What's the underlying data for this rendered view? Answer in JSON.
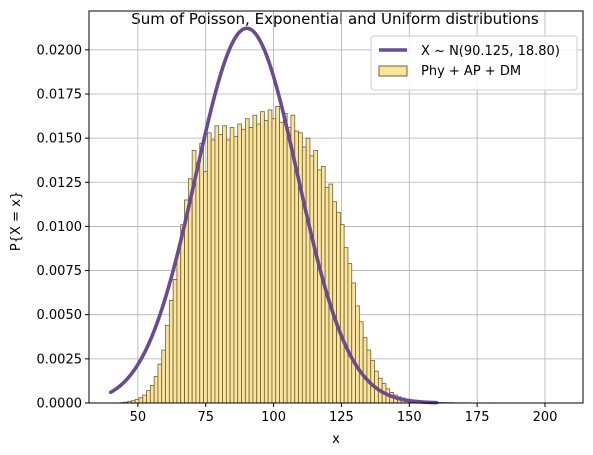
{
  "chart_data": {
    "type": "bar",
    "title": "Sum of Poisson, Exponential and Uniform distributions",
    "xlabel": "x",
    "ylabel": "P{X = x}",
    "xlim": [
      32,
      214
    ],
    "ylim": [
      0,
      0.0222
    ],
    "xticks": [
      50,
      75,
      100,
      125,
      150,
      175,
      200
    ],
    "yticks": [
      0.0,
      0.0025,
      0.005,
      0.0075,
      0.01,
      0.0125,
      0.015,
      0.0175,
      0.02
    ],
    "ytick_labels": [
      "0.0000",
      "0.0025",
      "0.0050",
      "0.0075",
      "0.0100",
      "0.0125",
      "0.0150",
      "0.0175",
      "0.0200"
    ],
    "grid": true,
    "legend_position": "top-right",
    "series": [
      {
        "name": "X ~ N(90.125, 18.80)",
        "kind": "line",
        "color": "#684c8f",
        "mu": 90.125,
        "sigma": 18.8,
        "x_range": [
          40,
          160
        ]
      },
      {
        "name": "Phy + AP + DM",
        "kind": "histogram",
        "bin_width": 1.4,
        "face_color": "#fde49b",
        "edge_color": "#6a5f3c",
        "x": [
          44.1,
          45.5,
          46.9,
          48.3,
          49.7,
          51.1,
          52.5,
          53.9,
          55.3,
          56.7,
          58.1,
          59.5,
          60.9,
          62.3,
          63.7,
          65.1,
          66.5,
          67.9,
          69.3,
          70.7,
          72.1,
          73.5,
          74.9,
          76.3,
          77.7,
          79.1,
          80.5,
          81.9,
          83.3,
          84.7,
          86.1,
          87.5,
          88.9,
          90.3,
          91.7,
          93.1,
          94.5,
          95.9,
          97.3,
          98.7,
          100.1,
          101.5,
          102.9,
          104.3,
          105.7,
          107.1,
          108.5,
          109.9,
          111.3,
          112.7,
          114.1,
          115.5,
          116.9,
          118.3,
          119.7,
          121.1,
          122.5,
          123.9,
          125.3,
          126.7,
          128.1,
          129.5,
          130.9,
          132.3,
          133.7,
          135.1,
          136.5,
          137.9,
          139.3,
          140.7,
          142.1,
          143.5,
          144.9,
          146.3,
          147.7,
          149.1,
          150.5,
          151.9,
          153.3,
          154.7,
          156.1,
          157.5,
          158.9,
          160.3,
          161.7,
          163.1,
          164.5,
          165.9,
          167.3,
          168.7,
          170.1,
          171.5,
          180.0
        ],
        "y": [
          2e-05,
          4e-05,
          8e-05,
          0.00013,
          0.0002,
          0.0003,
          0.00045,
          0.0007,
          0.001,
          0.0015,
          0.0022,
          0.003,
          0.0044,
          0.0058,
          0.007,
          0.0085,
          0.0101,
          0.0115,
          0.0127,
          0.0143,
          0.0136,
          0.0147,
          0.0131,
          0.0153,
          0.0149,
          0.0157,
          0.0152,
          0.0157,
          0.0149,
          0.0156,
          0.0151,
          0.0158,
          0.0155,
          0.0161,
          0.0156,
          0.0163,
          0.0158,
          0.0165,
          0.016,
          0.0166,
          0.0161,
          0.0168,
          0.0159,
          0.0164,
          0.0156,
          0.0163,
          0.0154,
          0.0153,
          0.0145,
          0.015,
          0.014,
          0.0143,
          0.0132,
          0.0134,
          0.0122,
          0.0124,
          0.0114,
          0.0108,
          0.0101,
          0.0088,
          0.0079,
          0.0068,
          0.0055,
          0.0046,
          0.0037,
          0.003,
          0.0024,
          0.0018,
          0.0014,
          0.0011,
          0.0008,
          0.0006,
          0.00045,
          0.00035,
          0.00028,
          0.00022,
          0.00017,
          0.00013,
          0.0001,
          8e-05,
          6e-05,
          5e-05,
          4e-05,
          3e-05,
          3e-05,
          2e-05,
          2e-05,
          2e-05,
          1e-05,
          1e-05,
          1e-05,
          1e-05,
          1e-05
        ]
      }
    ]
  }
}
